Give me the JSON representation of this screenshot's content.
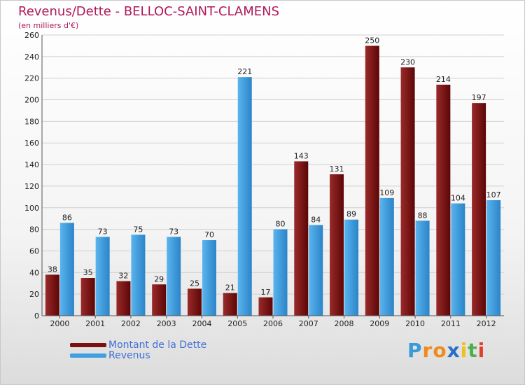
{
  "chart_data": {
    "type": "bar",
    "title": "Revenus/Dette - BELLOC-SAINT-CLAMENS",
    "subtitle": "(en milliers d'€)",
    "xlabel": "",
    "ylabel": "",
    "categories": [
      "2000",
      "2001",
      "2002",
      "2003",
      "2004",
      "2005",
      "2006",
      "2007",
      "2008",
      "2009",
      "2010",
      "2011",
      "2012"
    ],
    "series": [
      {
        "name": "Montant de la Dette",
        "color": "#7a1010",
        "values": [
          38,
          35,
          32,
          29,
          25,
          21,
          17,
          143,
          131,
          250,
          230,
          214,
          197
        ]
      },
      {
        "name": "Revenus",
        "color": "#3f9fe0",
        "values": [
          86,
          73,
          75,
          73,
          70,
          221,
          80,
          84,
          89,
          109,
          88,
          104,
          107
        ]
      }
    ],
    "ylim": [
      0,
      260
    ],
    "yticks": [
      0,
      20,
      40,
      60,
      80,
      100,
      120,
      140,
      160,
      180,
      200,
      220,
      240,
      260
    ],
    "grid": true,
    "legend": "bottom-left"
  },
  "logo": {
    "letters": [
      "P",
      "r",
      "o",
      "x",
      "i",
      "t",
      "i"
    ],
    "colors": [
      "#3a9ad9",
      "#f08a1c",
      "#f08a1c",
      "#2a6fc7",
      "#f0c01c",
      "#4cb04c",
      "#e0402a"
    ]
  }
}
